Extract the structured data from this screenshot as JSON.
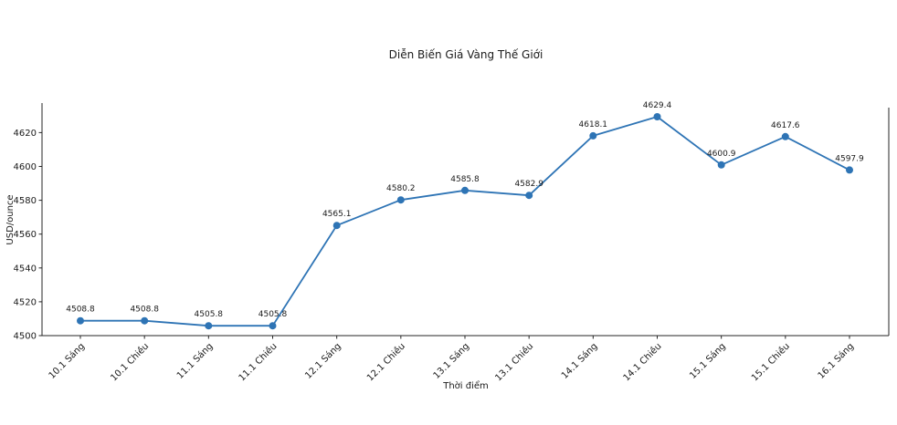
{
  "title": "Diễn Biến Giá Vàng Thế Giới",
  "chart_data": {
    "type": "line",
    "title": "Diễn Biến Giá Vàng Thế Giới",
    "xlabel": "Thời điểm",
    "ylabel": "USD/ounce",
    "categories": [
      "10.1 Sáng",
      "10.1 Chiều",
      "11.1 Sáng",
      "11.1 Chiều",
      "12.1 Sáng",
      "12.1 Chiều",
      "13.1 Sáng",
      "13.1 Chiều",
      "14.1 Sáng",
      "14.1 Chiều",
      "15.1 Sáng",
      "15.1 Chiều",
      "16.1 Sáng"
    ],
    "values": [
      4508.8,
      4508.8,
      4505.8,
      4505.8,
      4565.1,
      4580.2,
      4585.8,
      4582.9,
      4618.1,
      4629.4,
      4600.9,
      4617.6,
      4597.9
    ],
    "point_labels": [
      "4508.8",
      "4508.8",
      "4505.8",
      "4505.8",
      "4565.1",
      "4580.2",
      "4585.8",
      "4582.9",
      "4618.1",
      "4629.4",
      "4600.9",
      "4617.6",
      "4597.9"
    ],
    "yticks": [
      4500,
      4520,
      4540,
      4560,
      4580,
      4600,
      4620
    ],
    "ylim": [
      4500,
      4638
    ],
    "grid": false,
    "legend": null,
    "line_color": "#2e74b5",
    "marker_color": "#2e74b5",
    "text_color": "#1a1a1a",
    "spine_color": "#262626",
    "x_tick_rotation_deg": 45
  }
}
